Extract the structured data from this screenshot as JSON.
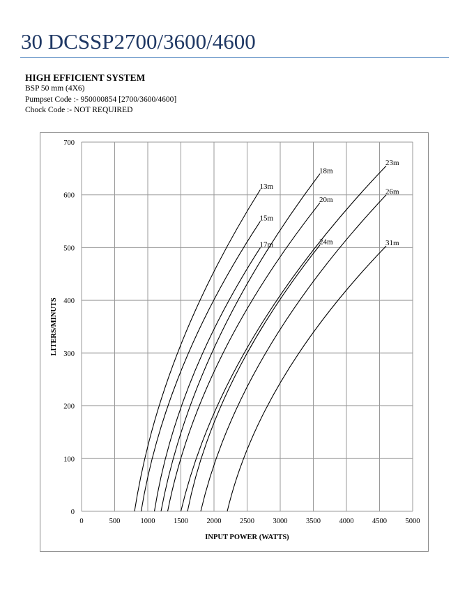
{
  "header": {
    "title": "30 DCSSP2700/3600/4600"
  },
  "info": {
    "heading": "HIGH EFFICIENT SYSTEM",
    "line1": "BSP 50  mm (4X6)",
    "line2": "Pumpset Code :- 950000854 [2700/3600/4600]",
    "line3": "Chock Code :-  NOT REQUIRED"
  },
  "chart_data": {
    "type": "line",
    "xlabel": "INPUT POWER (WATTS)",
    "ylabel": "LITERS/MINUTS",
    "xlim": [
      0,
      5000
    ],
    "ylim": [
      0,
      700
    ],
    "xticks": [
      "0",
      "500",
      "1000",
      "1500",
      "2000",
      "2500",
      "3000",
      "3500",
      "4000",
      "4500",
      "5000"
    ],
    "yticks": [
      "0",
      "100",
      "200",
      "300",
      "400",
      "500",
      "600",
      "700"
    ],
    "grid": true,
    "series": [
      {
        "name": "13m",
        "points": [
          [
            800,
            0
          ],
          [
            1465,
            305
          ],
          [
            2700,
            610
          ]
        ]
      },
      {
        "name": "15m",
        "points": [
          [
            900,
            0
          ],
          [
            1530,
            275
          ],
          [
            2700,
            550
          ]
        ]
      },
      {
        "name": "17m",
        "points": [
          [
            1100,
            0
          ],
          [
            1660,
            250
          ],
          [
            2700,
            500
          ]
        ]
      },
      {
        "name": "18m",
        "points": [
          [
            1200,
            0
          ],
          [
            2040,
            320
          ],
          [
            3600,
            640
          ]
        ]
      },
      {
        "name": "20m",
        "points": [
          [
            1300,
            0
          ],
          [
            2105,
            292
          ],
          [
            3600,
            585
          ]
        ]
      },
      {
        "name": "23m",
        "points": [
          [
            1500,
            0
          ],
          [
            2585,
            328
          ],
          [
            4600,
            655
          ]
        ]
      },
      {
        "name": "24m",
        "points": [
          [
            1600,
            0
          ],
          [
            2300,
            252
          ],
          [
            3600,
            505
          ]
        ]
      },
      {
        "name": "26m",
        "points": [
          [
            1800,
            0
          ],
          [
            2780,
            300
          ],
          [
            4600,
            600
          ]
        ]
      },
      {
        "name": "31m",
        "points": [
          [
            2200,
            0
          ],
          [
            3040,
            252
          ],
          [
            4600,
            503
          ]
        ]
      }
    ]
  }
}
